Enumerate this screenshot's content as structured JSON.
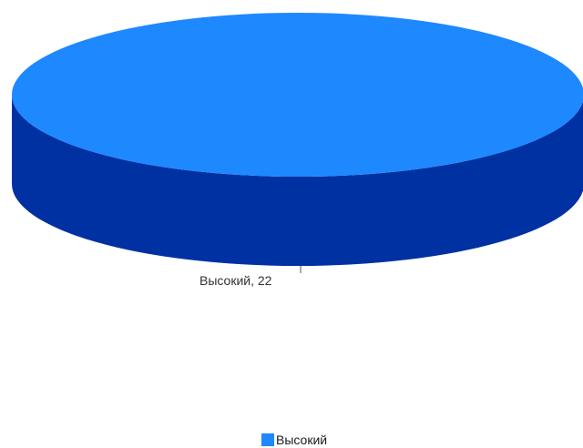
{
  "chart_data": {
    "type": "pie",
    "categories": [
      "Высокий"
    ],
    "values": [
      22
    ],
    "data_labels": [
      "Высокий, 22"
    ],
    "legend": {
      "placement": "bottom-center",
      "entries": [
        {
          "label": "Высокий",
          "color": "#1e88ff"
        }
      ]
    },
    "colors": {
      "slice_top": "#1e88ff",
      "slice_side": "#0031a3"
    },
    "style": "3d"
  }
}
